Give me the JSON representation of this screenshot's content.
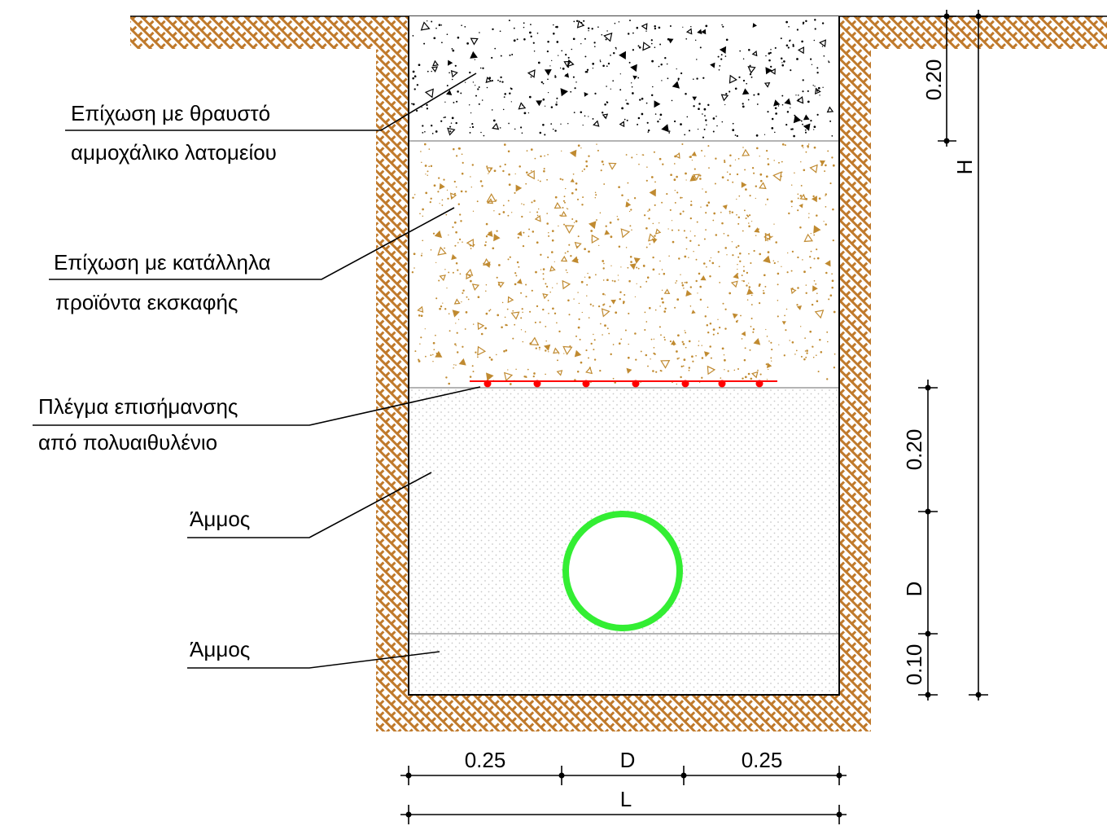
{
  "labels": {
    "crushed_line1": "Επίχωση με θραυστό",
    "crushed_line2": "αμμοχάλικο λατομείου",
    "excavation_line1": "Επίχωση με κατάλληλα",
    "excavation_line2": "προϊόντα εκσκαφής",
    "mesh_line1": "Πλέγμα επισήμανσης",
    "mesh_line2": "από πολυαιθυλένιο",
    "sand_upper": "Άμμος",
    "sand_lower": "Άμμος"
  },
  "dimensions": {
    "top_layer": "0.20",
    "total_height": "H",
    "above_pipe": "0.20",
    "pipe_diameter_v": "D",
    "bedding": "0.10",
    "side_left": "0.25",
    "pipe_diameter_h": "D",
    "side_right": "0.25",
    "trench_width": "L"
  },
  "colors": {
    "soil": "#c07a2c",
    "crushed_aggregate": "#000000",
    "backfill_speckle": "#c08a30",
    "sand_dots": "#c8c8c8",
    "warning_mesh": "#ff0000",
    "pipe": "#33ee33",
    "layer_lines": "#b4b4b4"
  }
}
